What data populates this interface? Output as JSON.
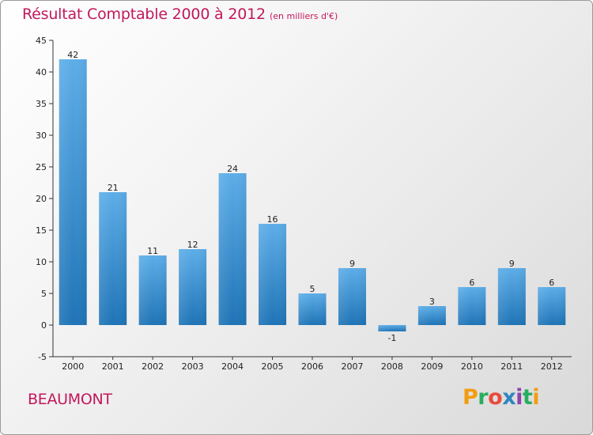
{
  "header": {
    "title": "Résultat Comptable 2000 à 2012",
    "subtitle": "(en milliers d'€)"
  },
  "footer": {
    "city": "BEAUMONT",
    "brand": "Proxiti"
  },
  "colors": {
    "title": "#c2185b",
    "bar_light": "#5dade8",
    "bar_dark": "#1f74b6",
    "brand_letters": [
      "#f39c12",
      "#27ae60",
      "#e74c3c",
      "#2e86c1",
      "#8e44ad",
      "#27ae60",
      "#f39c12"
    ]
  },
  "chart_data": {
    "type": "bar",
    "title": "Résultat Comptable 2000 à 2012",
    "subtitle": "(en milliers d'€)",
    "xlabel": "",
    "ylabel": "",
    "categories": [
      "2000",
      "2001",
      "2002",
      "2003",
      "2004",
      "2005",
      "2006",
      "2007",
      "2008",
      "2009",
      "2010",
      "2011",
      "2012"
    ],
    "values": [
      42,
      21,
      11,
      12,
      24,
      16,
      5,
      9,
      -1,
      3,
      6,
      9,
      6
    ],
    "value_labels": [
      "42",
      "21",
      "11",
      "12",
      "24",
      "16",
      "5",
      "9",
      "-1",
      "3",
      "6",
      "9",
      "6"
    ],
    "ylim": [
      -5,
      45
    ],
    "yticks": [
      -5,
      0,
      5,
      10,
      15,
      20,
      25,
      30,
      35,
      40,
      45
    ],
    "grid": false,
    "legend": "none"
  }
}
